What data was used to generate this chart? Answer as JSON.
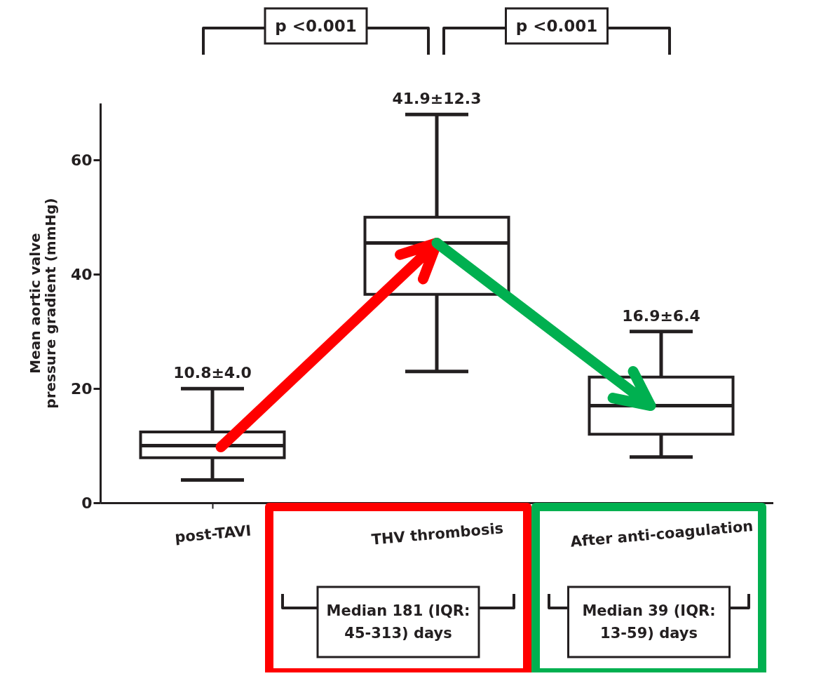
{
  "chart_data": {
    "type": "box",
    "ylabel": "Mean aortic valve pressure gradient (mmHg)",
    "categories": [
      "post-TAVI",
      "THV thrombosis",
      "After anti-coagulation"
    ],
    "boxes": [
      {
        "low": 4,
        "q1": 7.9,
        "median": 10,
        "q3": 12.4,
        "high": 20
      },
      {
        "low": 23,
        "q1": 36.5,
        "median": 45.5,
        "q3": 50,
        "high": 68
      },
      {
        "low": 8,
        "q1": 12,
        "median": 17,
        "q3": 22,
        "high": 30
      }
    ],
    "ylim": [
      0,
      70
    ],
    "yticks": [
      0,
      20,
      40,
      60
    ],
    "annotations": [
      "10.8±4.0",
      "41.9±12.3",
      "16.9±6.4",
      "p <0.001",
      "p <0.001",
      "Median 181 (IQR: 45-313) days",
      "Median 39 (IQR: 13-59) days"
    ]
  }
}
